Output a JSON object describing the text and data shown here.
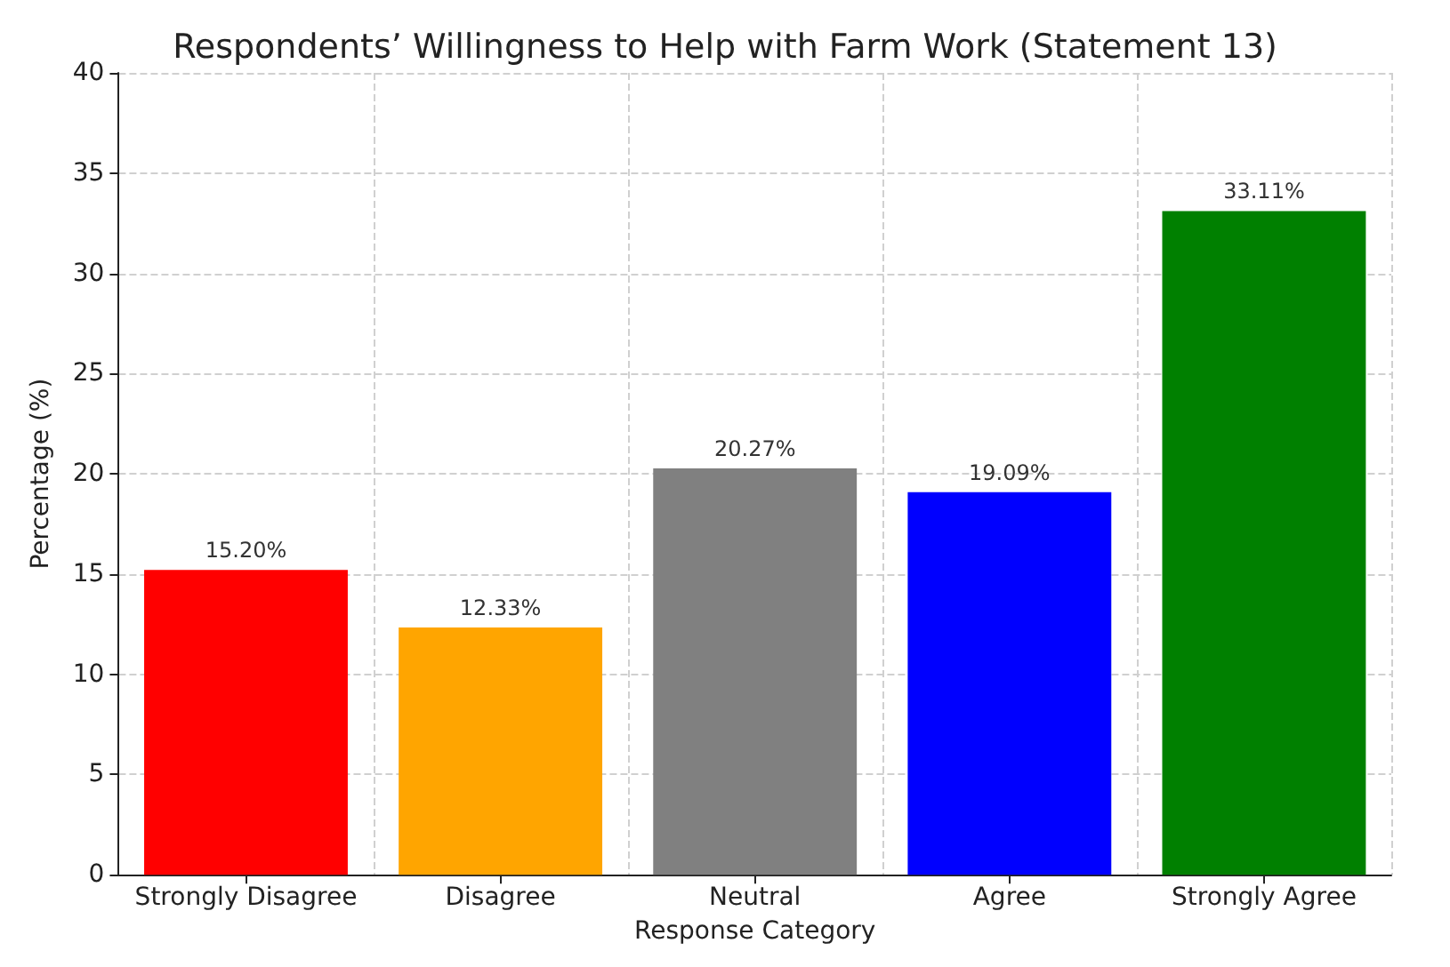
{
  "chart_data": {
    "type": "bar",
    "title": "Respondents’ Willingness to Help with Farm Work (Statement 13)",
    "xlabel": "Response Category",
    "ylabel": "Percentage (%)",
    "categories": [
      "Strongly Disagree",
      "Disagree",
      "Neutral",
      "Agree",
      "Strongly Agree"
    ],
    "values": [
      15.2,
      12.33,
      20.27,
      19.09,
      33.11
    ],
    "value_labels": [
      "15.20%",
      "12.33%",
      "20.27%",
      "19.09%",
      "33.11%"
    ],
    "colors": [
      "#ff0000",
      "#ffa500",
      "#808080",
      "#0000ff",
      "#008000"
    ],
    "ylim": [
      0,
      40
    ],
    "yticks": [
      0,
      5,
      10,
      15,
      20,
      25,
      30,
      35,
      40
    ],
    "grid": true
  }
}
